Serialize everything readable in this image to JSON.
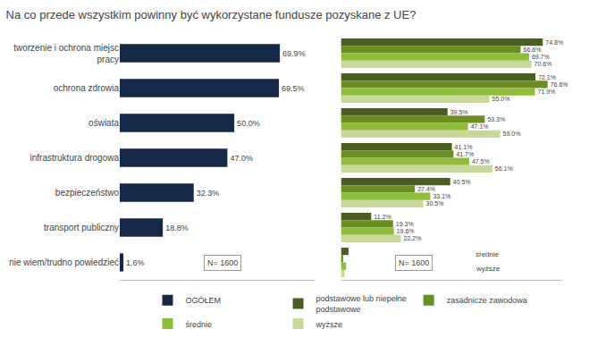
{
  "chart_data": [
    {
      "type": "bar",
      "title": "Na co przede wszystkim powinny być wykorzystane fundusze pozyskane z UE?",
      "orientation": "horizontal",
      "categories": [
        "tworzenie i ochrona miejsc\npracy",
        "ochrona zdrowia",
        "oświata",
        "infrastruktura drogowa",
        "bezpieczeństwo",
        "transport publiczny",
        "nie wiem/trudno powiedzieć"
      ],
      "series": [
        {
          "name": "OGÓŁEM",
          "color": "#152848",
          "values": [
            69.9,
            69.5,
            50.0,
            47.0,
            32.3,
            18.8,
            1.6
          ],
          "value_labels": [
            "69.9%",
            "69.5%",
            "50.0%",
            "47.0%",
            "32.3%",
            "18.8%",
            "1.6%"
          ]
        }
      ],
      "xlim": [
        0,
        85
      ],
      "data_labels": true,
      "tick_labels": "y",
      "grid": false,
      "legend": "bottom",
      "annotations": [
        "N= 1600"
      ]
    },
    {
      "type": "bar",
      "orientation": "horizontal",
      "categories": [
        "tworzenie i ochrona miejsc\npracy",
        "ochrona zdrowia",
        "oświata",
        "infrastruktura drogowa",
        "bezpieczeństwo",
        "transport publiczny",
        "nie wiem/trudno powiedzieć"
      ],
      "series": [
        {
          "name": "podstawowe lub niepełne\npodstawowe",
          "color": "#4a5e23",
          "values": [
            74.8,
            72.1,
            39.5,
            41.1,
            40.5,
            11.2,
            2.8
          ],
          "value_labels": [
            "74.8%",
            "72.1%",
            "39.5%",
            "41.1%",
            "40.5%",
            "11.2%",
            null
          ]
        },
        {
          "name": "zasadnicze zawodowa",
          "color": "#6b8e23",
          "values": [
            66.6,
            76.6,
            53.3,
            41.7,
            27.4,
            19.3,
            0.8
          ],
          "value_labels": [
            "66.6%",
            "76.6%",
            "53.3%",
            "41.7%",
            "27.4%",
            "19.3%",
            null
          ]
        },
        {
          "name": "średnie",
          "color": "#8fbc3a",
          "values": [
            69.7,
            71.9,
            47.1,
            47.5,
            33.1,
            19.6,
            1.9
          ],
          "value_labels": [
            "69.7%",
            "71.9%",
            "47.1%",
            "47.5%",
            "33.1%",
            "19.6%",
            null
          ]
        },
        {
          "name": "wyższe",
          "color": "#c8d89a",
          "values": [
            70.6,
            55.0,
            59.0,
            56.1,
            30.5,
            22.2,
            1.3
          ],
          "value_labels": [
            "70.6%",
            "55.0%",
            "59.0%",
            "56.1%",
            "30.5%",
            "22.2%",
            null
          ]
        }
      ],
      "xlim": [
        0,
        82
      ],
      "data_labels": true,
      "tick_labels": false,
      "grid": false,
      "legend": "bottom",
      "annotations": [
        "N= 1600",
        "wyższe",
        "średnie"
      ]
    }
  ]
}
